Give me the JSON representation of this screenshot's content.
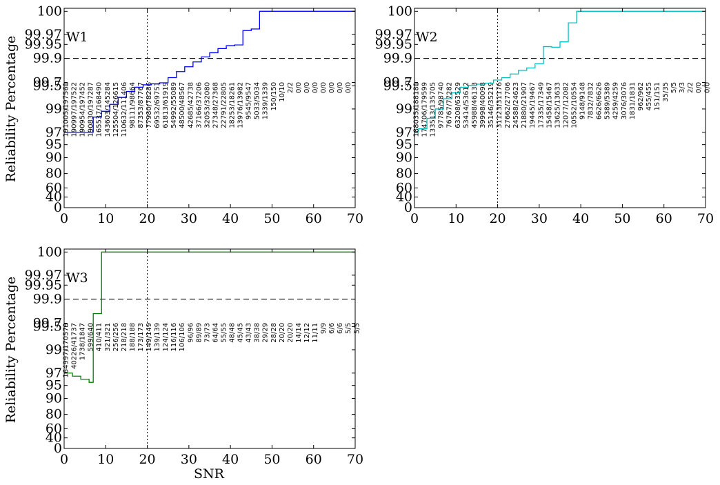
{
  "figure": {
    "xlabel": "SNR",
    "ylabel": "Reliability Percentage"
  },
  "chart_data": [
    {
      "type": "line",
      "label": "W1",
      "color": "#0000ff",
      "drawstyle": "steps-post",
      "xlabel": "",
      "ylabel": "Reliability Percentage",
      "xlim": [
        0,
        70
      ],
      "xticks": [
        0,
        10,
        20,
        30,
        40,
        50,
        60,
        70
      ],
      "yticks": [
        "0",
        "40",
        "60",
        "80",
        "90",
        "95",
        "97",
        "99",
        "99.5",
        "99.7",
        "99.9",
        "99.95",
        "99.97",
        "100"
      ],
      "hline": 99.9,
      "vline": 20,
      "x": [
        0,
        1,
        2,
        3,
        4,
        5,
        6,
        7,
        8,
        9,
        10,
        11,
        12,
        13,
        14,
        15,
        16,
        17,
        18,
        19,
        20,
        21,
        22,
        23,
        24,
        25,
        26,
        27,
        28,
        29,
        30,
        31,
        32,
        33,
        34,
        35,
        36,
        37,
        38,
        39,
        40,
        41,
        42,
        43,
        44,
        45,
        46,
        47,
        48,
        49,
        50,
        51,
        52,
        53,
        54,
        55,
        56,
        57,
        58,
        59,
        60,
        61,
        62,
        63,
        64,
        65,
        66,
        67,
        68,
        69,
        70
      ],
      "y": [
        97,
        97,
        97,
        97,
        97,
        97,
        97,
        98.3,
        98.3,
        98.8,
        98.8,
        99.1,
        99.1,
        99.25,
        99.25,
        99.38,
        99.38,
        99.47,
        99.47,
        99.56,
        99.56,
        99.62,
        99.62,
        99.68,
        99.68,
        99.74,
        99.74,
        99.79,
        99.79,
        99.83,
        99.83,
        99.87,
        99.87,
        99.905,
        99.905,
        99.92,
        99.92,
        99.935,
        99.935,
        99.945,
        99.945,
        99.948,
        99.948,
        99.975,
        99.975,
        99.977,
        99.977,
        100,
        100,
        100,
        100,
        100,
        100,
        100,
        100,
        100,
        100,
        100,
        100,
        100,
        100,
        100,
        100,
        100,
        100,
        100,
        100,
        100,
        100,
        100,
        100
      ],
      "counts": [
        "191005/197561",
        "190997/197522",
        "190954/197452",
        "190830/197287",
        "165537/168490",
        "143603/145284",
        "125504/126615",
        "110632/111406",
        "98111/98664",
        "87353/87767",
        "77980/78286",
        "69532/69751",
        "61813/61919",
        "54992/55089",
        "48500/48567",
        "42685/42738",
        "37166/37206",
        "32053/32080",
        "27348/27368",
        "22791/22805",
        "18253/18261",
        "13976/13982",
        "9545/9547",
        "5033/5034",
        "1339/1339",
        "150/150",
        "10/10",
        "2/2",
        "0/0",
        "0/0",
        "0/0",
        "0/0",
        "0/0",
        "0/0",
        "0/0"
      ]
    },
    {
      "type": "line",
      "label": "W2",
      "color": "#00bfbf",
      "drawstyle": "steps-post",
      "xlabel": "",
      "ylabel": "",
      "xlim": [
        0,
        70
      ],
      "xticks": [
        0,
        10,
        20,
        30,
        40,
        50,
        60,
        70
      ],
      "yticks": [
        "0",
        "40",
        "60",
        "80",
        "90",
        "95",
        "97",
        "99",
        "99.5",
        "99.7",
        "99.9",
        "99.95",
        "99.97",
        "100"
      ],
      "hline": 99.9,
      "vline": 20,
      "x": [
        0,
        1,
        2,
        3,
        4,
        5,
        6,
        7,
        8,
        9,
        10,
        11,
        12,
        13,
        14,
        15,
        16,
        17,
        18,
        19,
        20,
        21,
        22,
        23,
        24,
        25,
        26,
        27,
        28,
        29,
        30,
        31,
        32,
        33,
        34,
        35,
        36,
        37,
        38,
        39,
        40,
        41,
        42,
        43,
        44,
        45,
        46,
        47,
        48,
        49,
        50,
        51,
        52,
        53,
        54,
        55,
        56,
        57,
        58,
        59,
        60,
        61,
        62,
        63,
        64,
        65,
        66,
        67,
        68,
        69,
        70
      ],
      "y": [
        97,
        97.3,
        97.3,
        98.2,
        98.2,
        99.0,
        99.0,
        99.22,
        99.22,
        99.35,
        99.35,
        99.47,
        99.47,
        99.53,
        99.53,
        99.6,
        99.6,
        99.66,
        99.66,
        99.72,
        99.72,
        99.74,
        99.74,
        99.77,
        99.77,
        99.8,
        99.8,
        99.82,
        99.82,
        99.855,
        99.855,
        99.942,
        99.942,
        99.94,
        99.94,
        99.955,
        99.955,
        99.985,
        99.985,
        100,
        100,
        100,
        100,
        100,
        100,
        100,
        100,
        100,
        100,
        100,
        100,
        100,
        100,
        100,
        100,
        100,
        100,
        100,
        100,
        100,
        100,
        100,
        100,
        100,
        100,
        100,
        100,
        100,
        100,
        100,
        100
      ],
      "counts": [
        "188035/188181",
        "174706/179599",
        "133513/135705",
        "97785/98740",
        "76767/77282",
        "63208/63529",
        "53414/53612",
        "45988/46133",
        "39998/40098",
        "35146/35219",
        "31123/31176",
        "27662/27706",
        "24588/24623",
        "21880/21907",
        "19445/19467",
        "17335/17349",
        "15458/15467",
        "13625/13633",
        "12077/12082",
        "10552/10554",
        "9148/9148",
        "7832/7832",
        "6626/6626",
        "5389/5389",
        "4259/4259",
        "3076/3076",
        "1831/1831",
        "962/962",
        "455/455",
        "151/151",
        "35/35",
        "5/5",
        "3/3",
        "2/2",
        "0/0",
        "0/0"
      ]
    },
    {
      "type": "line",
      "label": "W3",
      "color": "#008000",
      "drawstyle": "steps-post",
      "xlabel": "SNR",
      "ylabel": "Reliability Percentage",
      "xlim": [
        0,
        70
      ],
      "xticks": [
        0,
        10,
        20,
        30,
        40,
        50,
        60,
        70
      ],
      "yticks": [
        "0",
        "40",
        "60",
        "80",
        "90",
        "95",
        "97",
        "99",
        "99.5",
        "99.7",
        "99.9",
        "99.95",
        "99.97",
        "100"
      ],
      "hline": 99.9,
      "vline": 20,
      "x": [
        0,
        1,
        2,
        3,
        4,
        5,
        6,
        7,
        8,
        9,
        10,
        11,
        12,
        13,
        14,
        15,
        16,
        17,
        18,
        19,
        20,
        21,
        22,
        23,
        24,
        25,
        26,
        27,
        28,
        29,
        30,
        31,
        32,
        33,
        34,
        35,
        36,
        37,
        38,
        39,
        40,
        41,
        42,
        43,
        44,
        45,
        46,
        47,
        48,
        49,
        50,
        51,
        52,
        53,
        54,
        55,
        56,
        57,
        58,
        59,
        60,
        61,
        62,
        63,
        64,
        65,
        66,
        67,
        68,
        69,
        70
      ],
      "y": [
        97,
        97,
        96.5,
        96.5,
        96,
        96,
        95.5,
        99.78,
        99.78,
        100,
        100,
        100,
        100,
        100,
        100,
        100,
        100,
        100,
        100,
        100,
        100,
        100,
        100,
        100,
        100,
        100,
        100,
        100,
        100,
        100,
        100,
        100,
        100,
        100,
        100,
        100,
        100,
        100,
        100,
        100,
        100,
        100,
        100,
        100,
        100,
        100,
        100,
        100,
        100,
        100,
        100,
        100,
        100,
        100,
        100,
        100,
        100,
        100,
        100,
        100,
        100,
        100,
        100,
        100,
        100,
        100,
        100,
        100,
        100,
        100,
        100
      ],
      "counts": [
        "164997/170579",
        "40226/41737",
        "1738/1847",
        "599/640",
        "410/411",
        "321/321",
        "256/256",
        "218/218",
        "188/188",
        "173/173",
        "149/149",
        "139/139",
        "124/124",
        "116/116",
        "106/106",
        "96/96",
        "89/89",
        "73/73",
        "64/64",
        "55/55",
        "48/48",
        "45/45",
        "43/43",
        "38/38",
        "29/29",
        "28/28",
        "20/20",
        "20/20",
        "14/14",
        "12/12",
        "11/11",
        "9/9",
        "6/6",
        "6/6",
        "5/5",
        "5/5"
      ]
    }
  ]
}
